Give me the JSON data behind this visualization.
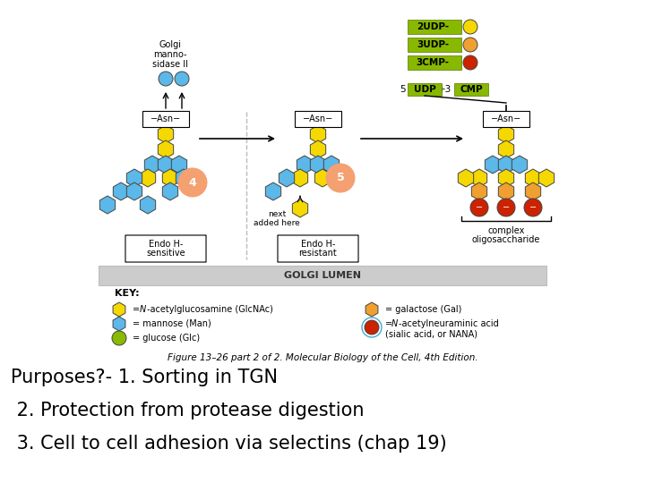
{
  "background_color": "#ffffff",
  "figure_caption": "Figure 13–26 part 2 of 2. Molecular Biology of the Cell, 4th Edition.",
  "caption_fontsize": 7.5,
  "caption_color": "#000000",
  "text_lines": [
    "Purposes?- 1. Sorting in TGN",
    " 2. Protection from protease digestion",
    " 3. Cell to cell adhesion via selectins (chap 19)"
  ],
  "text_fontsize": 15,
  "text_color": "#000000",
  "golgi_lumen_bar_color": "#cccccc",
  "golgi_lumen_text": "GOLGI LUMEN",
  "colors": {
    "blue": "#5bb8e8",
    "yellow": "#f5d800",
    "orange": "#f0a030",
    "green": "#88bb00",
    "red": "#cc2200",
    "salmon": "#f5a070",
    "udp_green": "#88b800",
    "udp_dark": "#557700"
  }
}
